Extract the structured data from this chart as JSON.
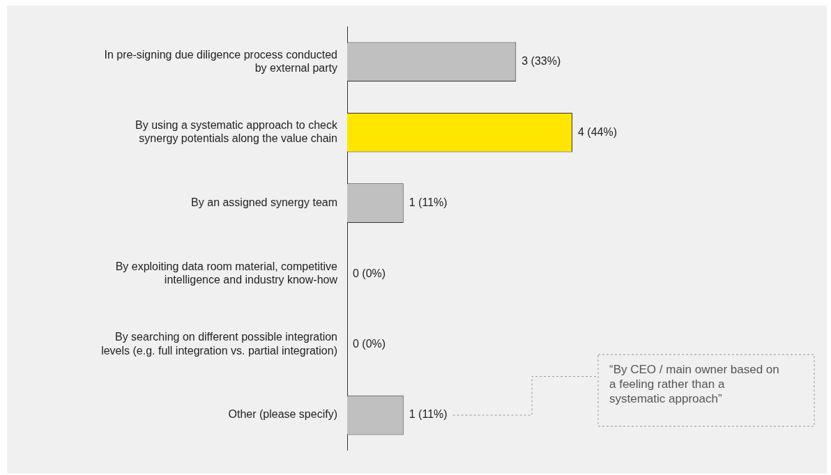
{
  "chart_data": {
    "type": "bar",
    "orientation": "horizontal",
    "categories": [
      "In pre-signing due diligence process conducted by external party",
      "By using a systematic approach to check synergy potentials along the value chain",
      "By an assigned synergy team",
      "By exploiting data room material, competitive intelligence and industry know-how",
      "By searching on different possible integration levels (e.g. full integration vs. partial integration)",
      "Other (please specify)"
    ],
    "values": [
      3,
      4,
      1,
      0,
      0,
      1
    ],
    "colors": [
      "#c0c0c0",
      "#ffe600",
      "#c0c0c0",
      "#c0c0c0",
      "#c0c0c0",
      "#c0c0c0"
    ],
    "value_labels": [
      "3 (33%)",
      "4 (44%)",
      "1 (11%)",
      "0 (0%)",
      "0 (0%)",
      "1 (11%)"
    ],
    "annotations": [
      "“By CEO / main owner based on a feeling rather than a systematic approach”"
    ],
    "legend": false
  }
}
